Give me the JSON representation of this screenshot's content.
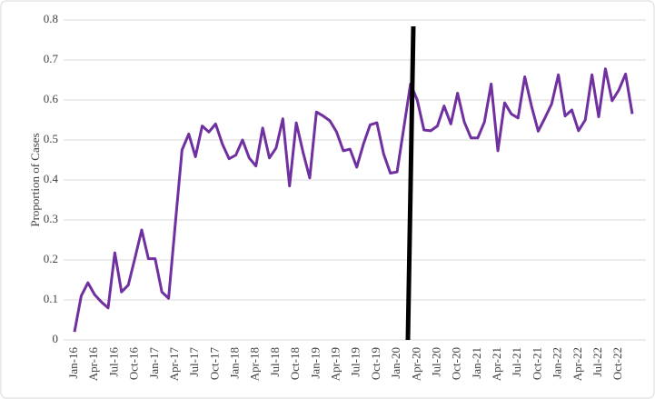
{
  "chart_data": {
    "type": "line",
    "y_label": "Proportion of Cases",
    "categories": [
      "Jan-16",
      null,
      null,
      "Apr-16",
      null,
      null,
      "Jul-16",
      null,
      null,
      "Oct-16",
      null,
      null,
      "Jan-17",
      null,
      null,
      "Apr-17",
      null,
      null,
      "Jul-17",
      null,
      null,
      "Oct-17",
      null,
      null,
      "Jan-18",
      null,
      null,
      "Apr-18",
      null,
      null,
      "Jul-18",
      null,
      null,
      "Oct-18",
      null,
      null,
      "Jan-19",
      null,
      null,
      "Apr-19",
      null,
      null,
      "Jul-19",
      null,
      null,
      "Oct-19",
      null,
      null,
      "Jan-20",
      null,
      null,
      "Apr-20",
      null,
      null,
      "Jul-20",
      null,
      null,
      "Oct-20",
      null,
      null,
      "Jan-21",
      null,
      null,
      "Apr-21",
      null,
      null,
      "Jul-21",
      null,
      null,
      "Oct-21",
      null,
      null,
      "Jan-22",
      null,
      null,
      "Apr-22",
      null,
      null,
      "Jul-22",
      null,
      null,
      "Oct-22",
      null,
      null
    ],
    "values": [
      0.02,
      0.11,
      0.143,
      0.113,
      0.095,
      0.08,
      0.218,
      0.12,
      0.137,
      0.205,
      0.275,
      0.203,
      0.203,
      0.12,
      0.104,
      0.29,
      0.475,
      0.515,
      0.458,
      0.535,
      0.52,
      0.54,
      0.49,
      0.453,
      0.462,
      0.5,
      0.455,
      0.435,
      0.53,
      0.455,
      0.48,
      0.553,
      0.385,
      0.543,
      0.47,
      0.405,
      0.57,
      0.56,
      0.548,
      0.52,
      0.473,
      0.477,
      0.432,
      0.49,
      0.538,
      0.543,
      0.465,
      0.417,
      0.42,
      0.53,
      0.64,
      0.6,
      0.525,
      0.523,
      0.535,
      0.585,
      0.54,
      0.617,
      0.545,
      0.505,
      0.505,
      0.545,
      0.64,
      0.473,
      0.593,
      0.565,
      0.555,
      0.658,
      0.585,
      0.522,
      0.555,
      0.59,
      0.663,
      0.56,
      0.575,
      0.523,
      0.55,
      0.663,
      0.558,
      0.678,
      0.598,
      0.625,
      0.665,
      0.565
    ],
    "color": "#7030a0",
    "ylim": [
      0,
      0.8
    ],
    "yticks": [
      0,
      0.1,
      0.2,
      0.3,
      0.4,
      0.5,
      0.6,
      0.7,
      0.8
    ],
    "grid": true
  }
}
